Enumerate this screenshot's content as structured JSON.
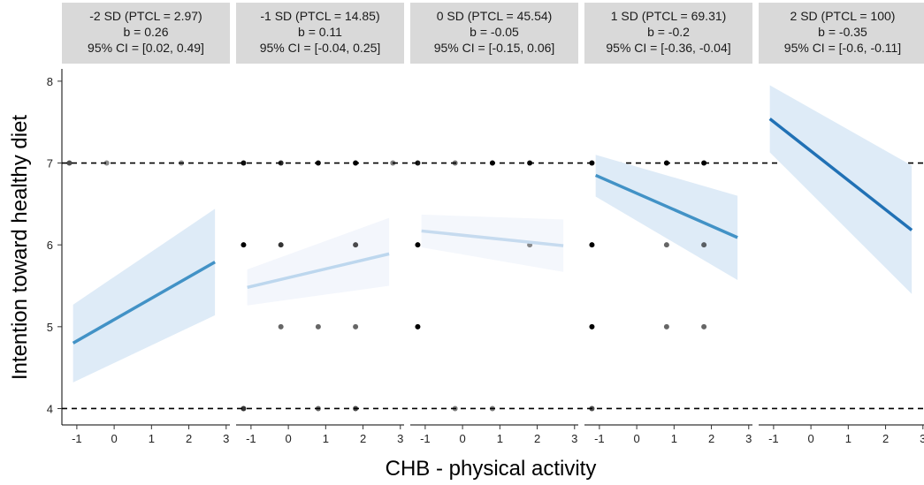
{
  "chart_data": {
    "type": "scatter",
    "xlabel": "CHB - physical activity",
    "ylabel": "Intention toward healthy diet",
    "xlim": [
      -1.4,
      3.1
    ],
    "ylim": [
      3.8,
      8.15
    ],
    "x_ticks": [
      -1,
      0,
      1,
      2,
      3
    ],
    "y_ticks": [
      4,
      5,
      6,
      7,
      8
    ],
    "reference_lines_y": [
      4,
      7
    ],
    "grid": false,
    "facets": [
      {
        "strip": [
          "-2 SD (PTCL = 2.97)",
          "b = 0.26",
          "95% CI = [0.02, 0.49]"
        ],
        "fit": {
          "x": [
            -1.1,
            2.7
          ],
          "y": [
            4.8,
            5.79
          ]
        },
        "ci_lower": [
          4.32,
          5.14
        ],
        "ci_upper": [
          5.27,
          6.44
        ],
        "line_color": "#4292c6",
        "band_color": "#deebf7",
        "points": [
          {
            "x": -1.2,
            "y": 7,
            "alpha": 0.7
          },
          {
            "x": -0.2,
            "y": 7,
            "alpha": 0.45
          },
          {
            "x": 1.8,
            "y": 7,
            "alpha": 0.45
          }
        ]
      },
      {
        "strip": [
          "-1 SD (PTCL = 14.85)",
          "b = 0.11",
          "95% CI = [-0.04, 0.25]"
        ],
        "fit": {
          "x": [
            -1.1,
            2.7
          ],
          "y": [
            5.48,
            5.89
          ]
        },
        "ci_lower": [
          5.26,
          5.5
        ],
        "ci_upper": [
          5.7,
          6.33
        ],
        "line_color": "#bdd7ee",
        "band_color": "#f3f6fc",
        "points": [
          {
            "x": -1.2,
            "y": 7,
            "alpha": 0.95
          },
          {
            "x": -0.2,
            "y": 7,
            "alpha": 0.85
          },
          {
            "x": 0.8,
            "y": 7,
            "alpha": 0.95
          },
          {
            "x": 1.8,
            "y": 7,
            "alpha": 1.0
          },
          {
            "x": 2.8,
            "y": 7,
            "alpha": 0.5
          },
          {
            "x": -1.2,
            "y": 6,
            "alpha": 1.0
          },
          {
            "x": -0.2,
            "y": 6,
            "alpha": 0.8
          },
          {
            "x": 1.8,
            "y": 6,
            "alpha": 0.7
          },
          {
            "x": -0.2,
            "y": 5,
            "alpha": 0.6
          },
          {
            "x": 0.8,
            "y": 5,
            "alpha": 0.6
          },
          {
            "x": 1.8,
            "y": 5,
            "alpha": 0.6
          },
          {
            "x": -1.2,
            "y": 4,
            "alpha": 0.8
          },
          {
            "x": 0.8,
            "y": 4,
            "alpha": 0.6
          },
          {
            "x": 1.8,
            "y": 4,
            "alpha": 0.7
          }
        ]
      },
      {
        "strip": [
          "0 SD (PTCL = 45.54)",
          "b = -0.05",
          "95% CI = [-0.15, 0.06]"
        ],
        "fit": {
          "x": [
            -1.1,
            2.7
          ],
          "y": [
            6.17,
            5.99
          ]
        },
        "ci_lower": [
          5.97,
          5.67
        ],
        "ci_upper": [
          6.37,
          6.31
        ],
        "line_color": "#c6dbef",
        "band_color": "#f4f7fc",
        "points": [
          {
            "x": -1.2,
            "y": 7,
            "alpha": 0.9
          },
          {
            "x": -0.2,
            "y": 7,
            "alpha": 0.55
          },
          {
            "x": 0.8,
            "y": 7,
            "alpha": 1.0
          },
          {
            "x": 1.8,
            "y": 7,
            "alpha": 0.95
          },
          {
            "x": -1.2,
            "y": 6,
            "alpha": 1.0
          },
          {
            "x": 1.8,
            "y": 6,
            "alpha": 0.45
          },
          {
            "x": -1.2,
            "y": 5,
            "alpha": 1.0
          },
          {
            "x": -0.2,
            "y": 4,
            "alpha": 0.5
          },
          {
            "x": 0.8,
            "y": 4,
            "alpha": 0.5
          }
        ]
      },
      {
        "strip": [
          "1 SD (PTCL = 69.31)",
          "b = -0.2",
          "95% CI = [-0.36, -0.04]"
        ],
        "fit": {
          "x": [
            -1.1,
            2.7
          ],
          "y": [
            6.85,
            6.09
          ]
        },
        "ci_lower": [
          6.59,
          5.57
        ],
        "ci_upper": [
          7.1,
          6.6
        ],
        "line_color": "#4292c6",
        "band_color": "#deebf7",
        "points": [
          {
            "x": -1.2,
            "y": 7,
            "alpha": 1.0
          },
          {
            "x": 0.8,
            "y": 7,
            "alpha": 1.0
          },
          {
            "x": 1.8,
            "y": 7,
            "alpha": 1.0
          },
          {
            "x": -1.2,
            "y": 6,
            "alpha": 1.0
          },
          {
            "x": 0.8,
            "y": 6,
            "alpha": 0.6
          },
          {
            "x": 1.8,
            "y": 6,
            "alpha": 0.6
          },
          {
            "x": -1.2,
            "y": 5,
            "alpha": 1.0
          },
          {
            "x": 0.8,
            "y": 5,
            "alpha": 0.6
          },
          {
            "x": 1.8,
            "y": 5,
            "alpha": 0.6
          },
          {
            "x": -1.2,
            "y": 4,
            "alpha": 0.7
          }
        ]
      },
      {
        "strip": [
          "2 SD (PTCL = 100)",
          "b = -0.35",
          "95% CI = [-0.6, -0.11]"
        ],
        "fit": {
          "x": [
            -1.1,
            2.7
          ],
          "y": [
            7.54,
            6.18
          ]
        },
        "ci_lower": [
          7.13,
          5.4
        ],
        "ci_upper": [
          7.95,
          6.97
        ],
        "line_color": "#2171b5",
        "band_color": "#deebf7",
        "points": []
      }
    ]
  }
}
